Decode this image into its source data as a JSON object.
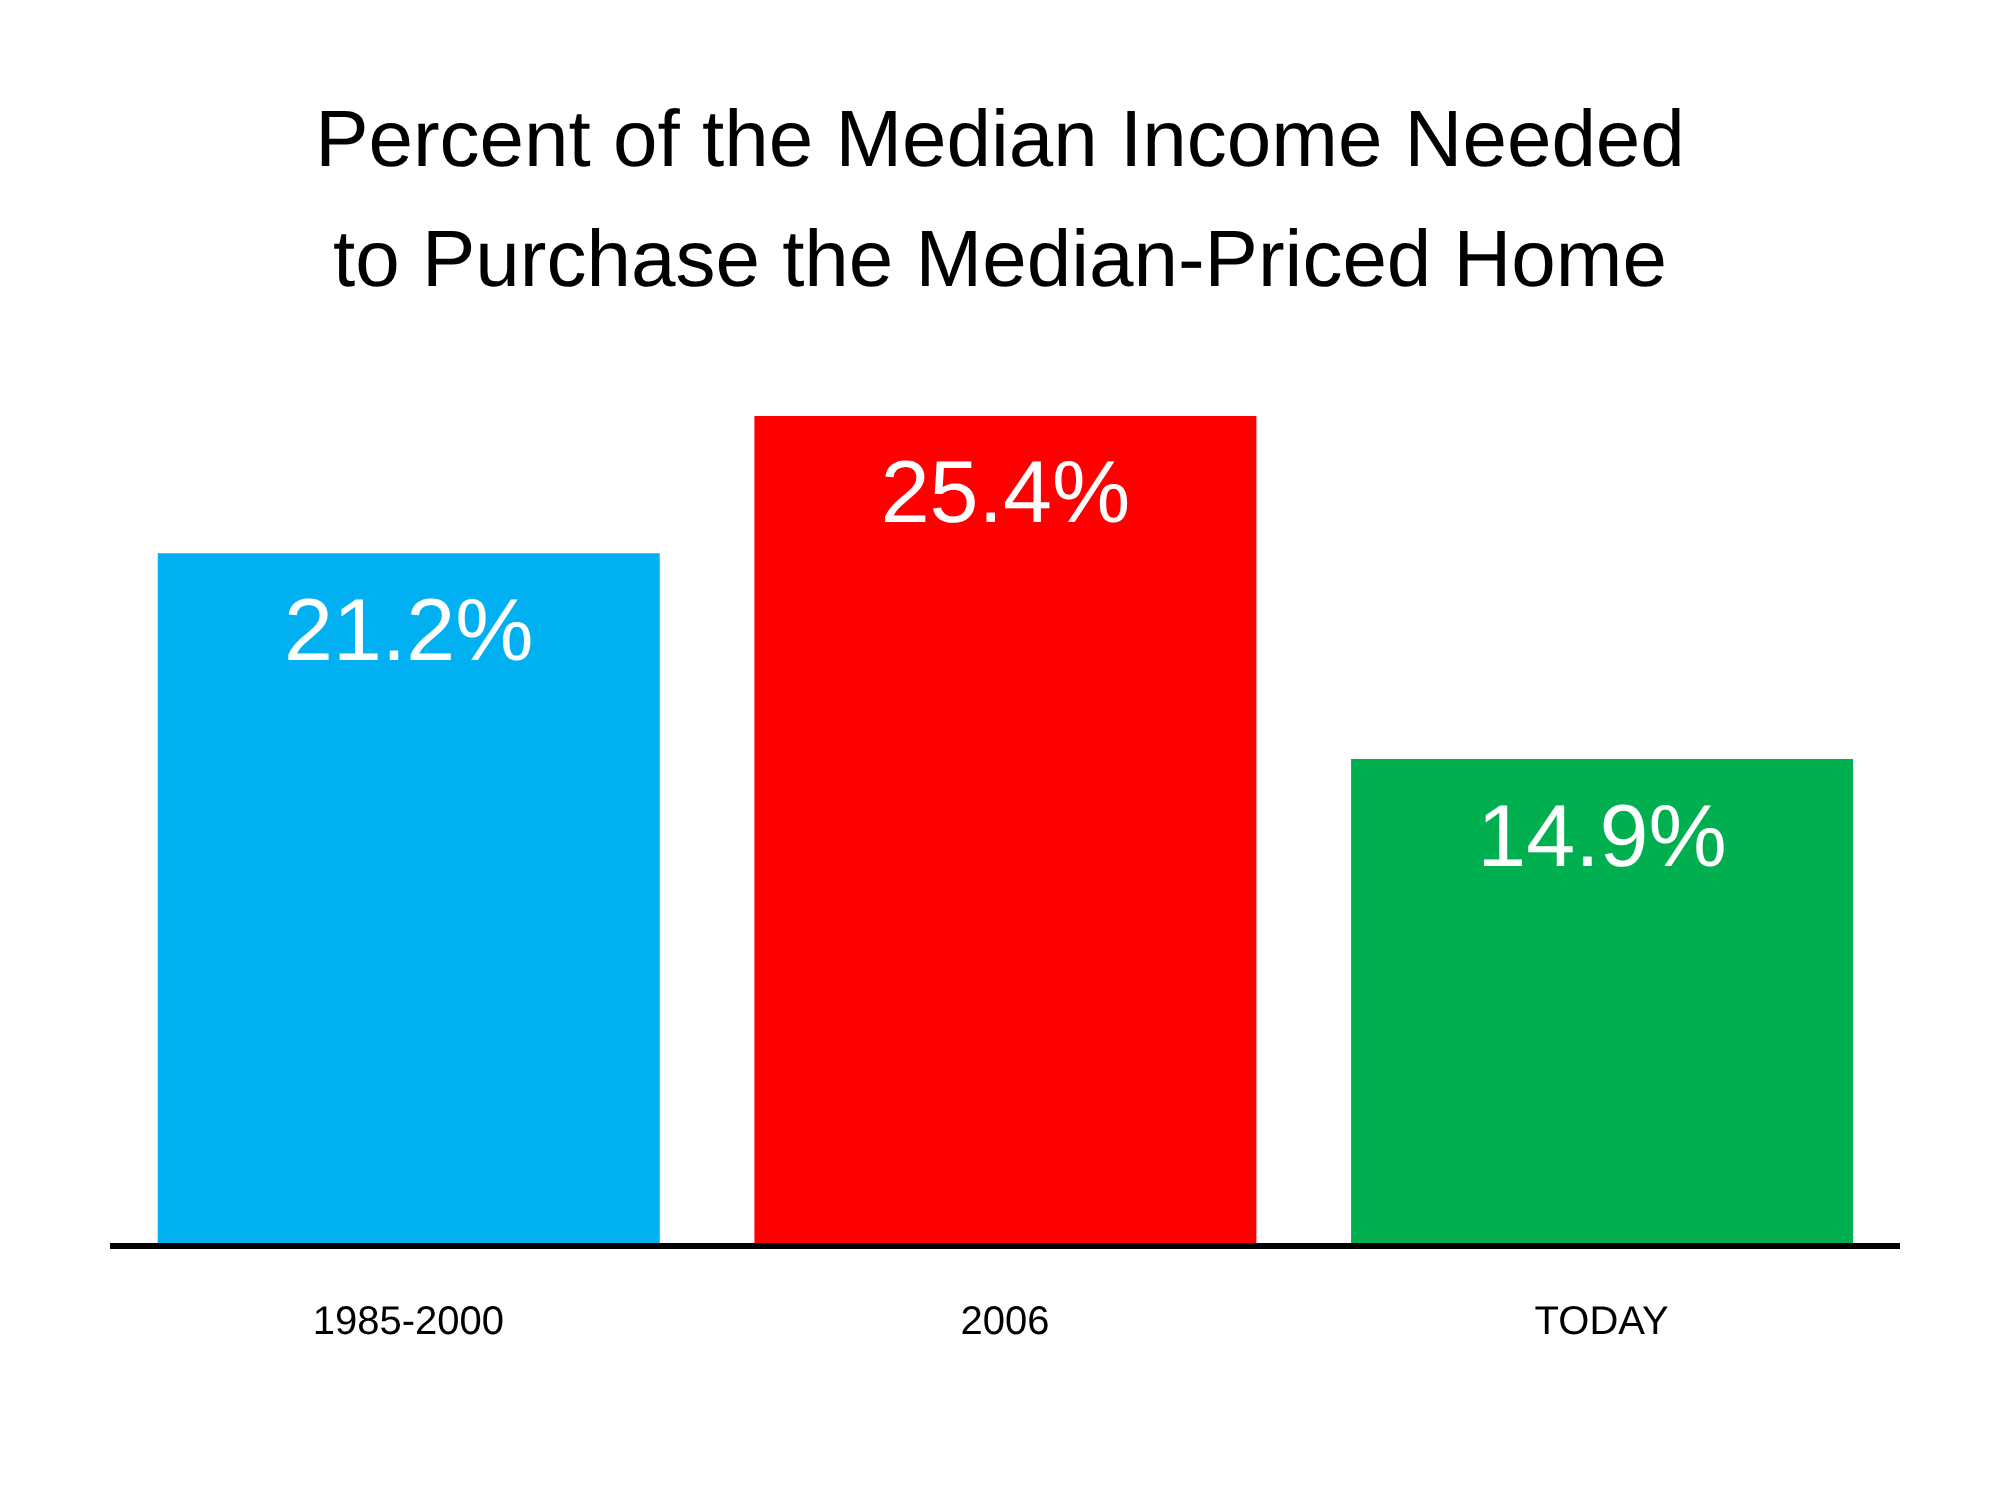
{
  "chart_data": {
    "type": "bar",
    "title": "Percent of the Median Income Needed\nto Purchase the Median-Priced Home",
    "categories": [
      "1985-2000",
      "2006",
      "TODAY"
    ],
    "values": [
      21.2,
      25.4,
      14.9
    ],
    "colors": [
      "#00b0f0",
      "#ff0000",
      "#00b050"
    ],
    "value_labels": [
      "21.2%",
      "25.4%",
      "14.9%"
    ]
  }
}
